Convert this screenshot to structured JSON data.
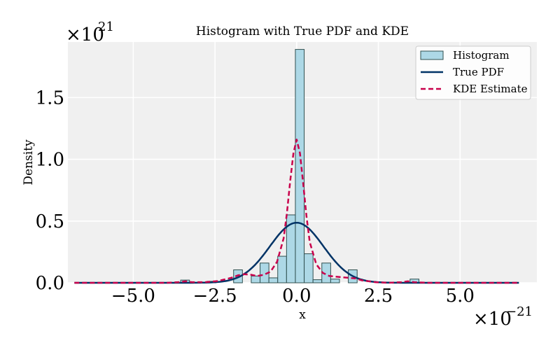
{
  "chart_data": {
    "type": "bar",
    "title": "Histogram with True PDF and KDE",
    "xlabel": "x",
    "ylabel": "Density",
    "x_multiplier": {
      "base": "×10",
      "exponent": "−21"
    },
    "y_multiplier": {
      "base": "×10",
      "exponent": "21"
    },
    "xlim": [
      -7.0,
      7.35
    ],
    "ylim": [
      0,
      1.95
    ],
    "x_ticks": [
      -5.0,
      -2.5,
      0.0,
      2.5,
      5.0
    ],
    "x_tick_labels": [
      "−5.0",
      "−2.5",
      "0.0",
      "2.5",
      "5.0"
    ],
    "y_ticks": [
      0.0,
      0.5,
      1.0,
      1.5
    ],
    "y_tick_labels": [
      "0.0",
      "0.5",
      "1.0",
      "1.5"
    ],
    "grid": true,
    "legend_position": "top-right",
    "colors": {
      "plot_bg": "#f0f0f0",
      "grid": "#ffffff",
      "hist_fill": "#add8e6",
      "hist_edge": "#2f4f4f",
      "pdf": "#003366",
      "kde": "#c8004b"
    },
    "legend": [
      {
        "label": "Histogram",
        "kind": "patch"
      },
      {
        "label": "True PDF",
        "kind": "line"
      },
      {
        "label": "KDE Estimate",
        "kind": "dashed"
      }
    ],
    "histogram": {
      "bin_width": 0.27,
      "bins": [
        {
          "x0": -3.55,
          "value": 0.022
        },
        {
          "x0": -2.74,
          "value": 0.012
        },
        {
          "x0": -1.93,
          "value": 0.105
        },
        {
          "x0": -1.39,
          "value": 0.055
        },
        {
          "x0": -1.12,
          "value": 0.16
        },
        {
          "x0": -0.85,
          "value": 0.04
        },
        {
          "x0": -0.58,
          "value": 0.215
        },
        {
          "x0": -0.31,
          "value": 0.55
        },
        {
          "x0": -0.04,
          "value": 1.89
        },
        {
          "x0": 0.23,
          "value": 0.235
        },
        {
          "x0": 0.5,
          "value": 0.025
        },
        {
          "x0": 0.77,
          "value": 0.16
        },
        {
          "x0": 1.04,
          "value": 0.03
        },
        {
          "x0": 1.58,
          "value": 0.105
        },
        {
          "x0": 3.47,
          "value": 0.03
        }
      ]
    },
    "true_pdf": {
      "mean": 0.0,
      "std": 0.82
    },
    "kde": {
      "x": [
        -6.8,
        -4.0,
        -3.6,
        -3.4,
        -3.2,
        -2.8,
        -2.4,
        -2.0,
        -1.8,
        -1.6,
        -1.4,
        -1.2,
        -1.0,
        -0.8,
        -0.6,
        -0.4,
        -0.3,
        -0.2,
        -0.1,
        0.0,
        0.1,
        0.2,
        0.3,
        0.4,
        0.6,
        0.8,
        1.0,
        1.2,
        1.4,
        1.6,
        1.8,
        2.0,
        2.4,
        2.8,
        3.2,
        3.4,
        3.6,
        4.0,
        6.8
      ],
      "y": [
        0.0,
        0.0,
        0.005,
        0.012,
        0.005,
        0.005,
        0.015,
        0.04,
        0.06,
        0.07,
        0.065,
        0.055,
        0.065,
        0.09,
        0.17,
        0.36,
        0.56,
        0.82,
        1.05,
        1.16,
        1.05,
        0.8,
        0.54,
        0.33,
        0.15,
        0.08,
        0.055,
        0.05,
        0.045,
        0.04,
        0.035,
        0.02,
        0.005,
        0.0,
        0.005,
        0.012,
        0.005,
        0.0,
        0.0
      ]
    }
  }
}
